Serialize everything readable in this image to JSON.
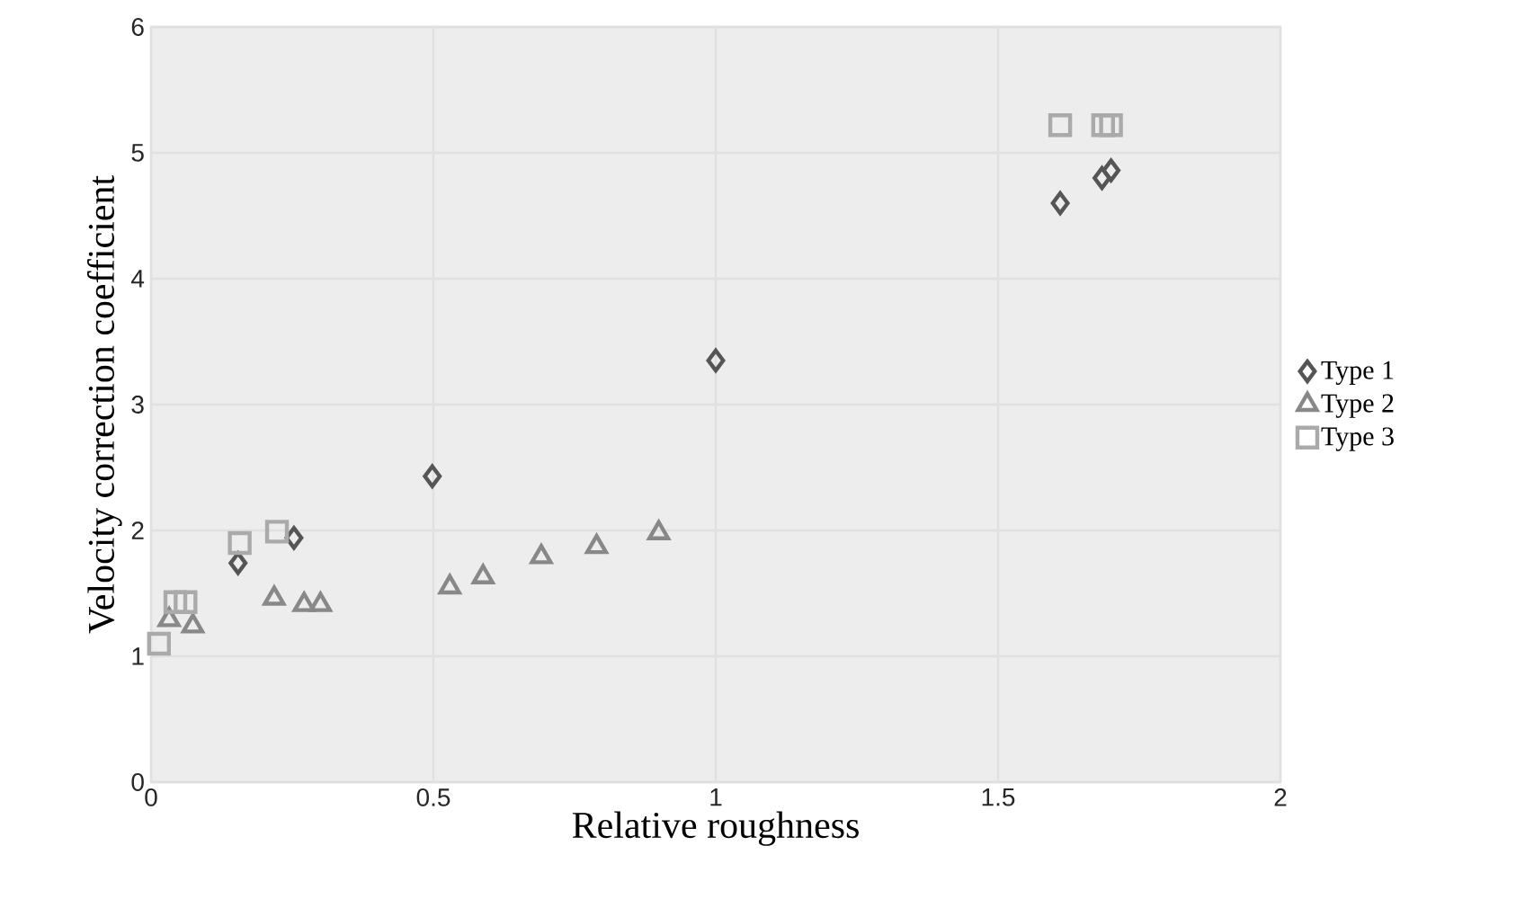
{
  "chart_data": {
    "type": "scatter",
    "xlabel": "Relative roughness",
    "ylabel": "Velocity correction coefficient",
    "xlim": [
      0,
      2
    ],
    "ylim": [
      0,
      6
    ],
    "xticks": [
      0,
      0.5,
      1,
      1.5,
      2
    ],
    "yticks": [
      0,
      1,
      2,
      3,
      4,
      5,
      6
    ],
    "grid": true,
    "legend": "right",
    "series": [
      {
        "name": "Type 1",
        "color": "#555555",
        "marker": "diamond",
        "x": [
          0.154,
          0.253,
          0.498,
          1.0,
          1.61,
          1.684,
          1.7
        ],
        "values": [
          1.74,
          1.94,
          2.43,
          3.35,
          4.6,
          4.8,
          4.86
        ]
      },
      {
        "name": "Type 2",
        "color": "#888888",
        "marker": "triangle",
        "x": [
          0.032,
          0.074,
          0.218,
          0.271,
          0.3,
          0.529,
          0.588,
          0.691,
          0.789,
          0.899
        ],
        "values": [
          1.29,
          1.24,
          1.46,
          1.41,
          1.41,
          1.55,
          1.63,
          1.79,
          1.87,
          1.98
        ]
      },
      {
        "name": "Type 3",
        "color": "#aaaaaa",
        "marker": "square",
        "x": [
          0.014,
          0.043,
          0.061,
          0.157,
          0.223,
          1.61,
          1.686,
          1.7
        ],
        "values": [
          1.1,
          1.43,
          1.43,
          1.9,
          1.99,
          5.22,
          5.22,
          5.22
        ]
      }
    ]
  }
}
